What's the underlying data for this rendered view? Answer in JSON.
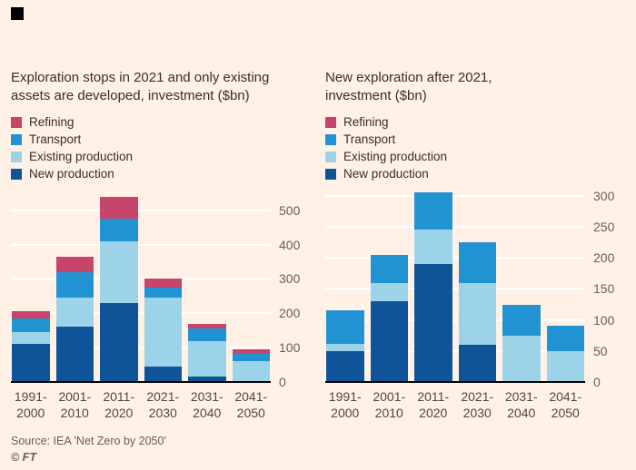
{
  "page": {
    "background": "#fff1e5",
    "source": "Source: IEA 'Net Zero by 2050'",
    "copyright": "© FT"
  },
  "colors": {
    "refining": "#c7456b",
    "transport": "#2293d2",
    "existing_production": "#9dd3e8",
    "new_production": "#0f5499",
    "gridline": "#ffffff",
    "zero_axis": "#000000",
    "text": "#33302e",
    "muted_text": "#66605c"
  },
  "legend": [
    {
      "label": "Refining",
      "color": "#c7456b"
    },
    {
      "label": "Transport",
      "color": "#2293d2"
    },
    {
      "label": "Existing production",
      "color": "#9dd3e8"
    },
    {
      "label": "New production",
      "color": "#0f5499"
    }
  ],
  "chart_data": [
    {
      "type": "bar",
      "stacked": true,
      "title": "Exploration stops in 2021 and only existing assets are developed, investment ($bn)",
      "categories": [
        "1991-2000",
        "2001-2010",
        "2011-2020",
        "2021-2030",
        "2031-2040",
        "2041-2050"
      ],
      "series": [
        {
          "name": "New production",
          "color": "#0f5499",
          "values": [
            110,
            160,
            230,
            45,
            15,
            0
          ]
        },
        {
          "name": "Existing production",
          "color": "#9dd3e8",
          "values": [
            35,
            85,
            180,
            200,
            105,
            60
          ]
        },
        {
          "name": "Transport",
          "color": "#2293d2",
          "values": [
            40,
            75,
            65,
            30,
            35,
            22
          ]
        },
        {
          "name": "Refining",
          "color": "#c7456b",
          "values": [
            20,
            45,
            65,
            25,
            15,
            13
          ]
        }
      ],
      "yticks": [
        0,
        100,
        200,
        300,
        400,
        500
      ],
      "ylim": [
        0,
        560
      ],
      "legend_position": "top-left",
      "grid": true
    },
    {
      "type": "bar",
      "stacked": true,
      "title": "New exploration after 2021, investment ($bn)",
      "categories": [
        "1991-2000",
        "2001-2010",
        "2011-2020",
        "2021-2030",
        "2031-2040",
        "2041-2050"
      ],
      "series": [
        {
          "name": "New production",
          "color": "#0f5499",
          "values": [
            50,
            130,
            190,
            60,
            0,
            0
          ]
        },
        {
          "name": "Existing production",
          "color": "#9dd3e8",
          "values": [
            12,
            30,
            55,
            100,
            75,
            50
          ]
        },
        {
          "name": "Transport",
          "color": "#2293d2",
          "values": [
            53,
            45,
            60,
            65,
            50,
            40
          ]
        },
        {
          "name": "Refining",
          "color": "#c7456b",
          "values": [
            0,
            0,
            0,
            0,
            0,
            0
          ]
        }
      ],
      "yticks": [
        0,
        50,
        100,
        150,
        200,
        250,
        300
      ],
      "ylim": [
        0,
        310
      ],
      "legend_position": "top-left",
      "grid": true
    }
  ]
}
